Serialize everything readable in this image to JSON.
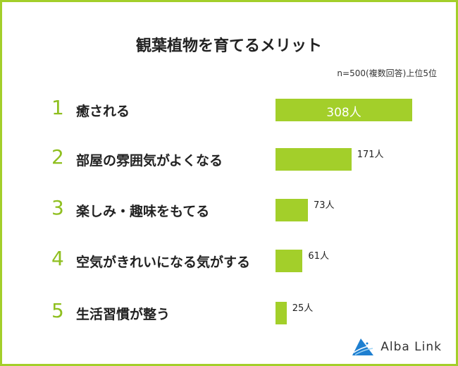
{
  "chart_data": {
    "type": "bar",
    "orientation": "horizontal",
    "title": "観葉植物を育てるメリット",
    "subtitle": "n=500(複数回答)上位5位",
    "ranks": [
      "1",
      "2",
      "3",
      "4",
      "5"
    ],
    "categories": [
      "癒される",
      "部屋の雰囲気がよくなる",
      "楽しみ・趣味をもてる",
      "空気がきれいになる気がする",
      "生活習慣が整う"
    ],
    "values": [
      308,
      171,
      73,
      61,
      25
    ],
    "unit": "人",
    "data_labels": [
      "308人",
      "171人",
      "73人",
      "61人",
      "25人"
    ],
    "bar_color": "#a3cf2a",
    "rank_color": "#8fbf1f"
  },
  "logo": {
    "text": "Alba Link",
    "icon": "alba-link-triangle-logo-icon"
  }
}
